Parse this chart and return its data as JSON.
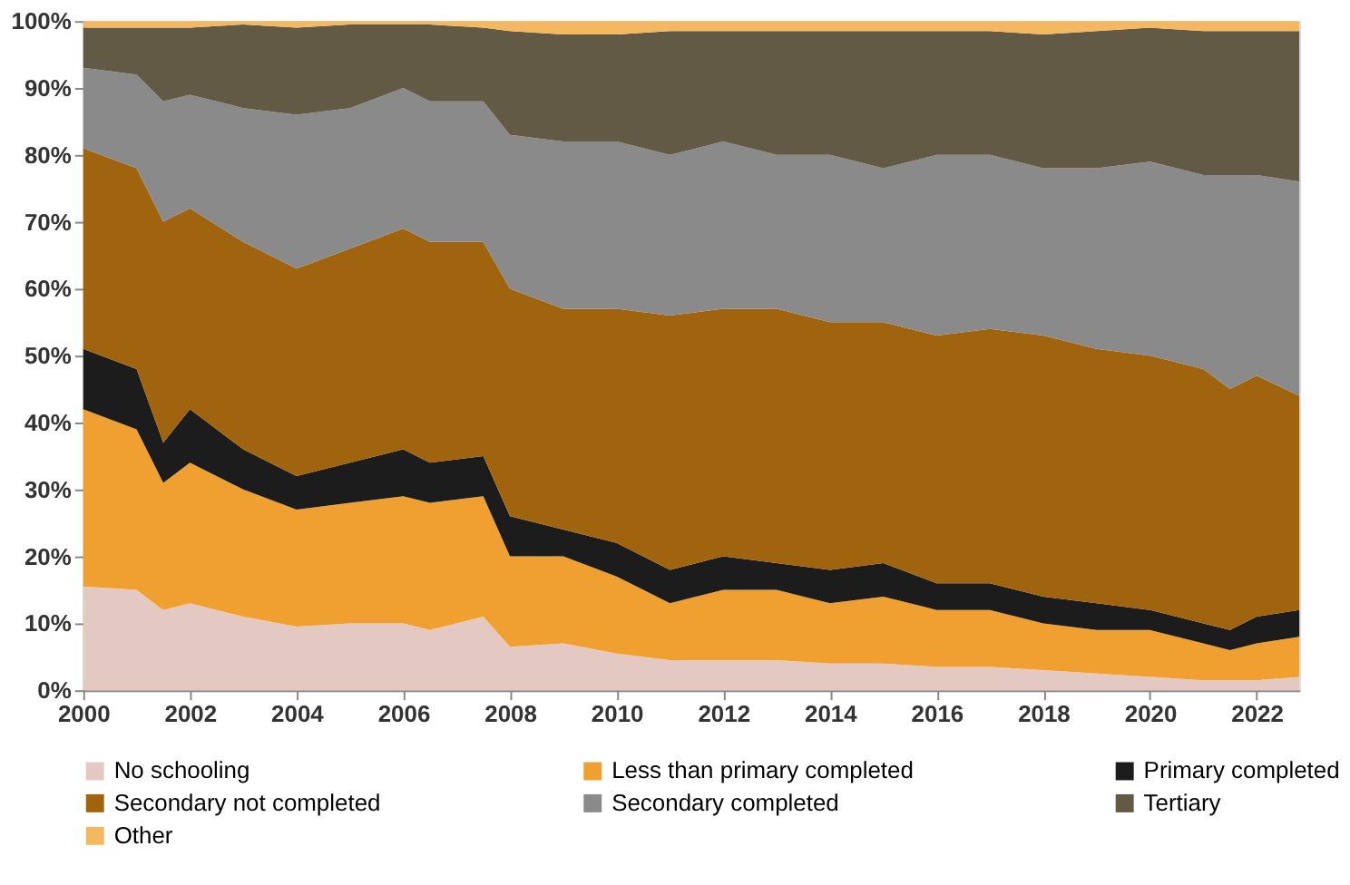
{
  "chart_data": {
    "type": "area",
    "stacked": true,
    "legend": "bottom",
    "grid": false,
    "x": [
      2000,
      2001,
      2001.5,
      2002,
      2003,
      2004,
      2005,
      2006,
      2006.5,
      2007.5,
      2008,
      2009,
      2010,
      2011,
      2012,
      2013,
      2014,
      2015,
      2016,
      2017,
      2018,
      2019,
      2020,
      2021,
      2021.5,
      2022,
      2022.8
    ],
    "xlim": [
      2000,
      2022.8
    ],
    "xticks": [
      2000,
      2002,
      2004,
      2006,
      2008,
      2010,
      2012,
      2014,
      2016,
      2018,
      2020,
      2022
    ],
    "ylim": [
      0,
      100
    ],
    "yticks": [
      {
        "value": 0,
        "label": "0%"
      },
      {
        "value": 10,
        "label": "10%"
      },
      {
        "value": 20,
        "label": "20%"
      },
      {
        "value": 30,
        "label": "30%"
      },
      {
        "value": 40,
        "label": "40%"
      },
      {
        "value": 50,
        "label": "50%"
      },
      {
        "value": 60,
        "label": "60%"
      },
      {
        "value": 70,
        "label": "70%"
      },
      {
        "value": 80,
        "label": "80%"
      },
      {
        "value": 90,
        "label": "90%"
      },
      {
        "value": 100,
        "label": "100%"
      }
    ],
    "series": [
      {
        "name": "No schooling",
        "color": "#e3c9c2",
        "values": [
          15.5,
          15,
          12,
          13,
          11,
          9.5,
          10,
          10,
          9,
          11,
          6.5,
          7,
          5.5,
          4.5,
          4.5,
          4.5,
          4,
          4,
          3.5,
          3.5,
          3,
          2.5,
          2,
          1.5,
          1.5,
          1.5,
          2
        ]
      },
      {
        "name": "Less than primary completed",
        "color": "#f0a030",
        "values": [
          26.5,
          24,
          19,
          21,
          19,
          17.5,
          18,
          19,
          19,
          18,
          13.5,
          13,
          11.5,
          8.5,
          10.5,
          10.5,
          9,
          10,
          8.5,
          8.5,
          7,
          6.5,
          7,
          5.5,
          4.5,
          5.5,
          6
        ]
      },
      {
        "name": "Primary completed",
        "color": "#1c1c1c",
        "values": [
          9,
          9,
          6,
          8,
          6,
          5,
          6,
          7,
          6,
          6,
          6,
          4,
          5,
          5,
          5,
          4,
          5,
          5,
          4,
          4,
          4,
          4,
          3,
          3,
          3,
          4,
          4
        ]
      },
      {
        "name": "Secondary not completed",
        "color": "#a0640f",
        "values": [
          30,
          30,
          33,
          30,
          31,
          31,
          32,
          33,
          33,
          32,
          34,
          33,
          35,
          38,
          37,
          38,
          37,
          36,
          37,
          38,
          39,
          38,
          38,
          38,
          36,
          36,
          32
        ]
      },
      {
        "name": "Secondary completed",
        "color": "#8a8a8a",
        "values": [
          12,
          14,
          18,
          17,
          20,
          23,
          21,
          21,
          21,
          21,
          23,
          25,
          25,
          24,
          25,
          23,
          25,
          23,
          27,
          26,
          25,
          27,
          29,
          29,
          32,
          30,
          32
        ]
      },
      {
        "name": "Tertiary",
        "color": "#625a45",
        "values": [
          6,
          7,
          11,
          10,
          12.5,
          13,
          12.5,
          9.5,
          11.5,
          11,
          15.5,
          16,
          16,
          18.5,
          16.5,
          18.5,
          18.5,
          20.5,
          18.5,
          18.5,
          20,
          20.5,
          20,
          21.5,
          21.5,
          21.5,
          22.5
        ]
      },
      {
        "name": "Other",
        "color": "#f4b860",
        "values": [
          1,
          1,
          1,
          1,
          0.5,
          1,
          0.5,
          0.5,
          0.5,
          1,
          1.5,
          2,
          2,
          1.5,
          1.5,
          1.5,
          1.5,
          1.5,
          1.5,
          1.5,
          2,
          1.5,
          1,
          1.5,
          1.5,
          1.5,
          1.5
        ]
      }
    ]
  }
}
